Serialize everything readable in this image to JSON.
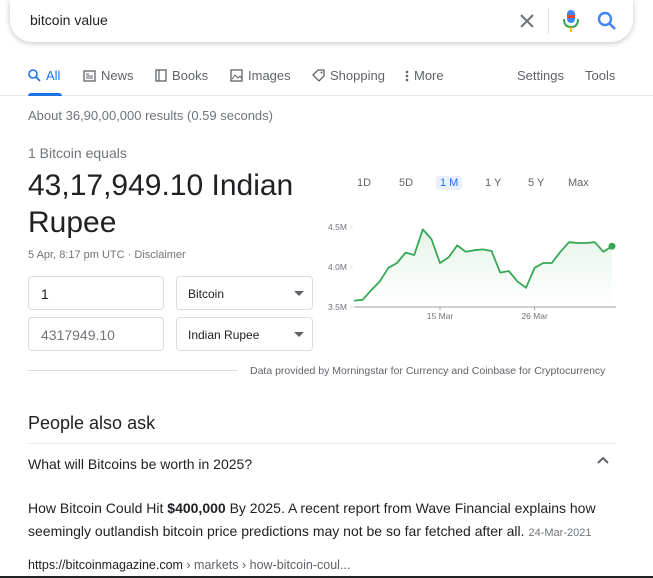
{
  "search": {
    "query": "bitcoin value"
  },
  "tabs": [
    {
      "label": "All",
      "icon": "search-icon"
    },
    {
      "label": "News",
      "icon": "news-icon"
    },
    {
      "label": "Books",
      "icon": "book-icon"
    },
    {
      "label": "Images",
      "icon": "image-icon"
    },
    {
      "label": "Shopping",
      "icon": "tag-icon"
    },
    {
      "label": "More",
      "icon": "more-vertical-icon"
    }
  ],
  "tools": {
    "settings": "Settings",
    "tools": "Tools"
  },
  "stats": "About 36,90,00,000 results (0.59 seconds)",
  "converter": {
    "equals_text": "1 Bitcoin equals",
    "big_value_line1": "43,17,949.10 Indian",
    "big_value_line2": "Rupee",
    "timestamp": "5 Apr, 8:17 pm UTC · Disclaimer",
    "from_amount": "1",
    "from_currency": "Bitcoin",
    "to_amount": "4317949.10",
    "to_currency": "Indian Rupee",
    "provider": "Data provided by Morningstar for Currency and Coinbase for Cryptocurrency"
  },
  "ranges": [
    "1D",
    "5D",
    "1 M",
    "1 Y",
    "5 Y",
    "Max"
  ],
  "active_range": "1 M",
  "chart_data": {
    "type": "line",
    "x_tick_labels": [
      "15 Mar",
      "26 Mar"
    ],
    "y_tick_labels": [
      "4.5M",
      "4.0M",
      "3.5M"
    ],
    "ylim": [
      3.5,
      4.5
    ],
    "values": [
      3.58,
      3.59,
      3.71,
      3.82,
      3.99,
      4.05,
      4.18,
      4.15,
      4.47,
      4.35,
      4.05,
      4.12,
      4.27,
      4.19,
      4.21,
      4.22,
      4.2,
      3.93,
      3.95,
      3.82,
      3.74,
      3.99,
      4.05,
      4.05,
      4.19,
      4.31,
      4.3,
      4.3,
      4.31,
      4.19,
      4.26
    ],
    "color": "#34a853",
    "fill": "#e6f4ea",
    "grid": false
  },
  "people_also_ask": {
    "title": "People also ask",
    "question": "What will Bitcoins be worth in 2025?",
    "answer_pre": "How Bitcoin Could Hit ",
    "answer_bold": "$400,000",
    "answer_post": " By 2025. A recent report from Wave Financial explains how seemingly outlandish bitcoin price predictions may not be so far fetched after all.",
    "answer_date": "24-Mar-2021",
    "cite_domain": "https://bitcoinmagazine.com",
    "cite_path": " › markets › how-bitcoin-coul..."
  }
}
